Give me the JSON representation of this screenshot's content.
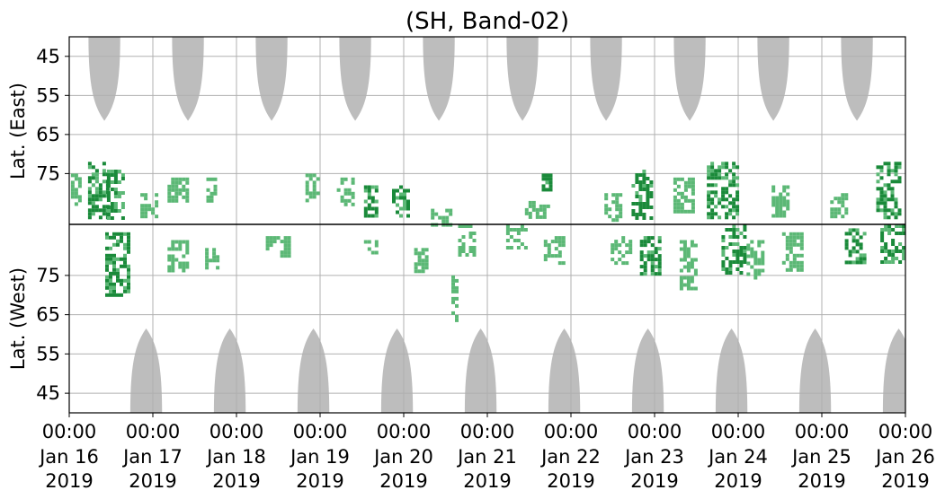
{
  "chart_data": {
    "type": "heatmap",
    "title": "(SH, Band-02)",
    "ylabel_top": "Lat. (East)",
    "ylabel_bottom": "Lat. (West)",
    "y_ticks_top": [
      "45",
      "55",
      "65",
      "75"
    ],
    "y_ticks_bottom": [
      "75",
      "65",
      "55",
      "45"
    ],
    "x_ticks": [
      {
        "time": "00:00",
        "date": "Jan 16",
        "year": "2019"
      },
      {
        "time": "00:00",
        "date": "Jan 17",
        "year": "2019"
      },
      {
        "time": "00:00",
        "date": "Jan 18",
        "year": "2019"
      },
      {
        "time": "00:00",
        "date": "Jan 19",
        "year": "2019"
      },
      {
        "time": "00:00",
        "date": "Jan 20",
        "year": "2019"
      },
      {
        "time": "00:00",
        "date": "Jan 21",
        "year": "2019"
      },
      {
        "time": "00:00",
        "date": "Jan 22",
        "year": "2019"
      },
      {
        "time": "00:00",
        "date": "Jan 23",
        "year": "2019"
      },
      {
        "time": "00:00",
        "date": "Jan 24",
        "year": "2019"
      },
      {
        "time": "00:00",
        "date": "Jan 25",
        "year": "2019"
      },
      {
        "time": "00:00",
        "date": "Jan 26",
        "year": "2019"
      }
    ],
    "xlim": [
      "2019-01-16 00:00",
      "2019-01-26 00:00"
    ],
    "grid": true,
    "colors": {
      "no_data": "#bdbdbd",
      "echo_light": "#5cb876",
      "echo_dark": "#1a8a3a",
      "grid": "#b0b0b0",
      "equator_line": "#000000"
    },
    "no_data_east_peak_days": [
      0.42,
      1.42,
      2.42,
      3.42,
      4.42,
      5.42,
      6.42,
      7.42,
      8.42,
      9.42
    ],
    "no_data_west_peak_days": [
      0.92,
      1.92,
      2.92,
      3.92,
      4.92,
      5.92,
      6.92,
      7.92,
      8.92,
      9.92
    ],
    "echo_clusters": [
      {
        "day": 0.08,
        "side": "east",
        "lat_from": 75,
        "lat_to": 83,
        "width_days": 0.12,
        "intensity": "light"
      },
      {
        "day": 0.35,
        "side": "east",
        "lat_from": 72,
        "lat_to": 86,
        "width_days": 0.25,
        "intensity": "dark"
      },
      {
        "day": 0.55,
        "side": "east",
        "lat_from": 74,
        "lat_to": 86,
        "width_days": 0.2,
        "intensity": "dark"
      },
      {
        "day": 0.58,
        "side": "west",
        "lat_from": 70,
        "lat_to": 86,
        "width_days": 0.3,
        "intensity": "dark"
      },
      {
        "day": 0.95,
        "side": "east",
        "lat_from": 80,
        "lat_to": 86,
        "width_days": 0.2,
        "intensity": "light"
      },
      {
        "day": 1.3,
        "side": "east",
        "lat_from": 76,
        "lat_to": 82,
        "width_days": 0.25,
        "intensity": "light"
      },
      {
        "day": 1.3,
        "side": "west",
        "lat_from": 76,
        "lat_to": 84,
        "width_days": 0.25,
        "intensity": "light"
      },
      {
        "day": 1.7,
        "side": "east",
        "lat_from": 76,
        "lat_to": 82,
        "width_days": 0.12,
        "intensity": "light"
      },
      {
        "day": 1.7,
        "side": "west",
        "lat_from": 76,
        "lat_to": 82,
        "width_days": 0.15,
        "intensity": "light"
      },
      {
        "day": 2.5,
        "side": "west",
        "lat_from": 80,
        "lat_to": 85,
        "width_days": 0.3,
        "intensity": "light"
      },
      {
        "day": 2.9,
        "side": "east",
        "lat_from": 75,
        "lat_to": 82,
        "width_days": 0.15,
        "intensity": "light"
      },
      {
        "day": 3.3,
        "side": "east",
        "lat_from": 76,
        "lat_to": 83,
        "width_days": 0.2,
        "intensity": "light"
      },
      {
        "day": 3.6,
        "side": "east",
        "lat_from": 78,
        "lat_to": 86,
        "width_days": 0.15,
        "intensity": "dark"
      },
      {
        "day": 3.6,
        "side": "west",
        "lat_from": 80,
        "lat_to": 84,
        "width_days": 0.15,
        "intensity": "light"
      },
      {
        "day": 3.95,
        "side": "east",
        "lat_from": 78,
        "lat_to": 86,
        "width_days": 0.18,
        "intensity": "dark"
      },
      {
        "day": 4.2,
        "side": "west",
        "lat_from": 76,
        "lat_to": 82,
        "width_days": 0.15,
        "intensity": "light"
      },
      {
        "day": 4.45,
        "side": "east",
        "lat_from": 84,
        "lat_to": 88,
        "width_days": 0.25,
        "intensity": "light"
      },
      {
        "day": 4.6,
        "side": "west",
        "lat_from": 64,
        "lat_to": 75,
        "width_days": 0.06,
        "intensity": "light"
      },
      {
        "day": 4.75,
        "side": "west",
        "lat_from": 80,
        "lat_to": 88,
        "width_days": 0.2,
        "intensity": "light"
      },
      {
        "day": 5.35,
        "side": "west",
        "lat_from": 82,
        "lat_to": 88,
        "width_days": 0.25,
        "intensity": "light"
      },
      {
        "day": 5.6,
        "side": "east",
        "lat_from": 82,
        "lat_to": 86,
        "width_days": 0.3,
        "intensity": "light"
      },
      {
        "day": 5.8,
        "side": "west",
        "lat_from": 78,
        "lat_to": 85,
        "width_days": 0.25,
        "intensity": "light"
      },
      {
        "day": 5.7,
        "side": "east",
        "lat_from": 75,
        "lat_to": 79,
        "width_days": 0.1,
        "intensity": "dark"
      },
      {
        "day": 6.5,
        "side": "east",
        "lat_from": 80,
        "lat_to": 87,
        "width_days": 0.2,
        "intensity": "light"
      },
      {
        "day": 6.6,
        "side": "west",
        "lat_from": 78,
        "lat_to": 85,
        "width_days": 0.25,
        "intensity": "light"
      },
      {
        "day": 6.85,
        "side": "east",
        "lat_from": 74,
        "lat_to": 86,
        "width_days": 0.25,
        "intensity": "dark"
      },
      {
        "day": 6.95,
        "side": "west",
        "lat_from": 75,
        "lat_to": 85,
        "width_days": 0.25,
        "intensity": "dark"
      },
      {
        "day": 7.35,
        "side": "east",
        "lat_from": 76,
        "lat_to": 85,
        "width_days": 0.25,
        "intensity": "light"
      },
      {
        "day": 7.4,
        "side": "west",
        "lat_from": 72,
        "lat_to": 84,
        "width_days": 0.2,
        "intensity": "light"
      },
      {
        "day": 7.8,
        "side": "east",
        "lat_from": 72,
        "lat_to": 86,
        "width_days": 0.35,
        "intensity": "dark"
      },
      {
        "day": 7.95,
        "side": "west",
        "lat_from": 76,
        "lat_to": 88,
        "width_days": 0.3,
        "intensity": "dark"
      },
      {
        "day": 8.2,
        "side": "west",
        "lat_from": 74,
        "lat_to": 84,
        "width_days": 0.2,
        "intensity": "light"
      },
      {
        "day": 8.5,
        "side": "east",
        "lat_from": 78,
        "lat_to": 86,
        "width_days": 0.2,
        "intensity": "light"
      },
      {
        "day": 8.65,
        "side": "west",
        "lat_from": 76,
        "lat_to": 86,
        "width_days": 0.25,
        "intensity": "light"
      },
      {
        "day": 9.2,
        "side": "east",
        "lat_from": 80,
        "lat_to": 86,
        "width_days": 0.2,
        "intensity": "light"
      },
      {
        "day": 9.4,
        "side": "west",
        "lat_from": 78,
        "lat_to": 87,
        "width_days": 0.25,
        "intensity": "dark"
      },
      {
        "day": 9.8,
        "side": "east",
        "lat_from": 72,
        "lat_to": 86,
        "width_days": 0.3,
        "intensity": "dark"
      },
      {
        "day": 9.85,
        "side": "west",
        "lat_from": 78,
        "lat_to": 88,
        "width_days": 0.3,
        "intensity": "dark"
      }
    ]
  }
}
